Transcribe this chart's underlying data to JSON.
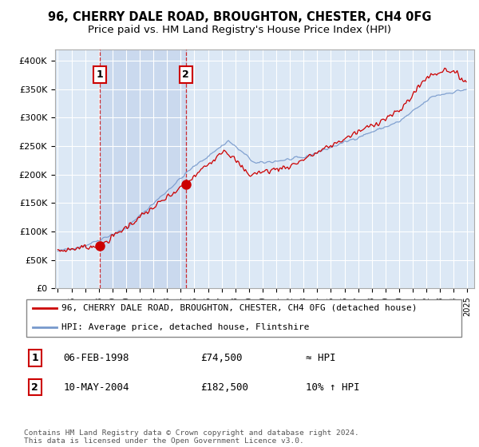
{
  "title": "96, CHERRY DALE ROAD, BROUGHTON, CHESTER, CH4 0FG",
  "subtitle": "Price paid vs. HM Land Registry's House Price Index (HPI)",
  "sale1_x": 1998.09,
  "sale1_y": 74500,
  "sale2_x": 2004.37,
  "sale2_y": 182500,
  "sale1_label": "1",
  "sale2_label": "2",
  "sale1_date": "06-FEB-1998",
  "sale1_price": "£74,500",
  "sale1_hpi": "≈ HPI",
  "sale2_date": "10-MAY-2004",
  "sale2_price": "£182,500",
  "sale2_hpi": "10% ↑ HPI",
  "property_line_color": "#cc0000",
  "hpi_line_color": "#7799cc",
  "marker_box_color": "#cc0000",
  "dashed_line_color": "#cc0000",
  "background_plot": "#dce8f5",
  "shade_color": "#c8d8ee",
  "legend_label1": "96, CHERRY DALE ROAD, BROUGHTON, CHESTER, CH4 0FG (detached house)",
  "legend_label2": "HPI: Average price, detached house, Flintshire",
  "footnote": "Contains HM Land Registry data © Crown copyright and database right 2024.\nThis data is licensed under the Open Government Licence v3.0.",
  "title_fontsize": 10.5,
  "subtitle_fontsize": 9.5,
  "ylim_min": 0,
  "ylim_max": 420000,
  "yticks": [
    0,
    50000,
    100000,
    150000,
    200000,
    250000,
    300000,
    350000,
    400000
  ],
  "ytick_labels": [
    "£0",
    "£50K",
    "£100K",
    "£150K",
    "£200K",
    "£250K",
    "£300K",
    "£350K",
    "£400K"
  ],
  "xlim_start": 1994.8,
  "xlim_end": 2025.5
}
